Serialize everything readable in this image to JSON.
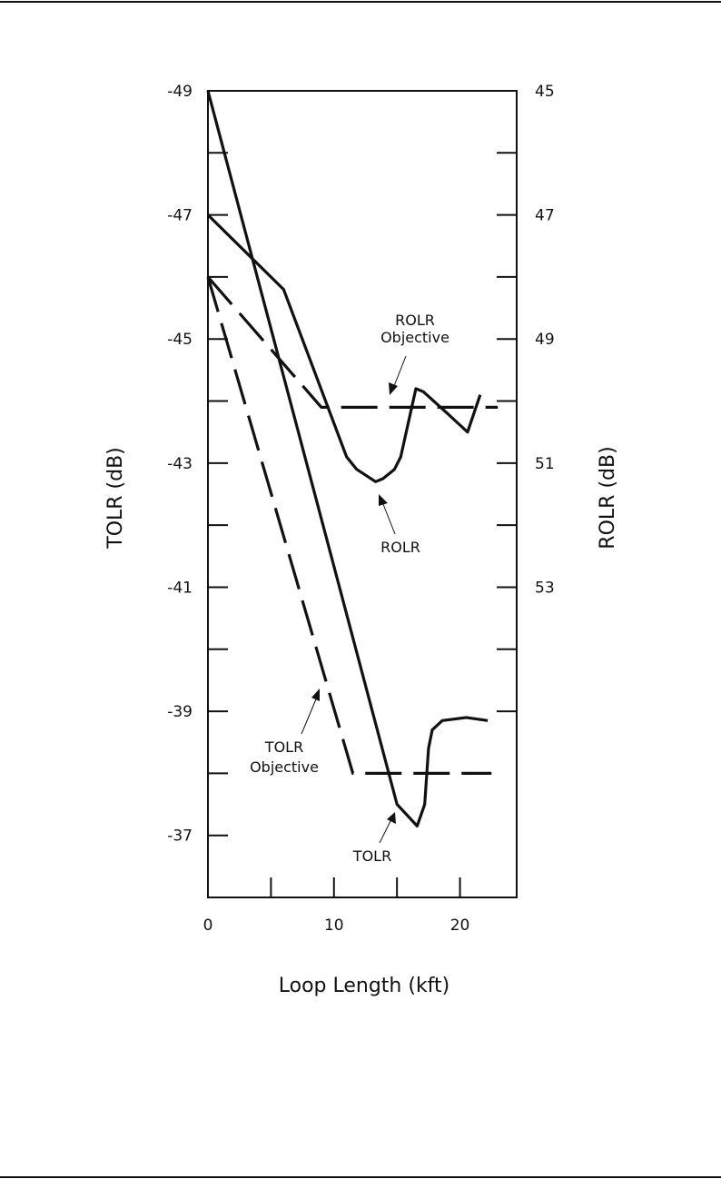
{
  "chart_data": {
    "type": "line",
    "xlabel": "Loop Length (kft)",
    "ylabel_left": "TOLR (dB)",
    "ylabel_right": "ROLR (dB)",
    "xlim": [
      0,
      24.5
    ],
    "ylim_left": [
      -49,
      -36
    ],
    "ylim_right": [
      45,
      58
    ],
    "x_ticks": [
      0,
      5,
      10,
      15,
      20
    ],
    "x_tick_labels": [
      "0",
      "",
      "10",
      "",
      "20"
    ],
    "y_left_ticks": [
      -49,
      -48,
      -47,
      -46,
      -45,
      -44,
      -43,
      -42,
      -41,
      -40,
      -39,
      -38,
      -37
    ],
    "y_left_tick_labels": [
      "-49",
      "",
      "-47",
      "",
      "-45",
      "",
      "-43",
      "",
      "-41",
      "",
      "-39",
      "",
      "-37"
    ],
    "y_right_ticks": [
      45,
      46,
      47,
      48,
      49,
      50,
      51,
      52,
      53,
      54,
      55
    ],
    "y_right_tick_labels": [
      "45",
      "",
      "47",
      "",
      "49",
      "",
      "51",
      "",
      "53",
      "",
      ""
    ],
    "grid": false,
    "series": [
      {
        "name": "TOLR",
        "axis": "left",
        "style": "solid",
        "x": [
          0,
          15.0,
          16.6,
          17.2,
          17.5,
          17.8,
          18.6,
          20.5,
          22.2
        ],
        "y": [
          -49,
          -37.5,
          -37.15,
          -37.5,
          -38.4,
          -38.7,
          -38.85,
          -38.9,
          -38.85
        ]
      },
      {
        "name": "TOLR Objective",
        "axis": "left",
        "style": "dashed",
        "x": [
          0,
          11.5,
          22.5
        ],
        "y": [
          -46,
          -38.0,
          -38.0
        ]
      },
      {
        "name": "ROLR",
        "axis": "right",
        "style": "solid",
        "x": [
          0,
          6,
          11,
          11.8,
          13.3,
          13.9,
          14.8,
          15.3,
          16.5,
          17.1,
          19.0,
          20.6,
          21.6
        ],
        "y": [
          47,
          48.2,
          50.9,
          51.1,
          51.3,
          51.25,
          51.1,
          50.9,
          49.8,
          49.85,
          50.2,
          50.5,
          49.9
        ]
      },
      {
        "name": "ROLR Objective",
        "axis": "right",
        "style": "dashed",
        "x": [
          0,
          9.0,
          23.0
        ],
        "y": [
          48.0,
          50.1,
          50.1
        ]
      }
    ],
    "annotations": [
      {
        "text": "ROLR Objective"
      },
      {
        "text": "ROLR"
      },
      {
        "text": "TOLR Objective"
      },
      {
        "text": "TOLR"
      }
    ]
  },
  "labels": {
    "rolr_obj_line1": "ROLR",
    "rolr_obj_line2": "Objective",
    "rolr": "ROLR",
    "tolr_obj_line1": "TOLR",
    "tolr_obj_line2": "Objective",
    "tolr": "TOLR"
  }
}
